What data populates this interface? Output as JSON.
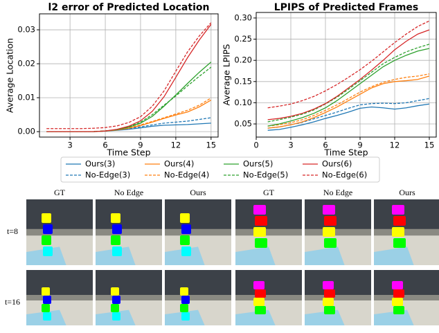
{
  "chart_data": [
    {
      "type": "line",
      "title": "l2 error of Predicted Location",
      "xlabel": "Time Step",
      "ylabel": "Average Location",
      "x": [
        1,
        2,
        3,
        4,
        5,
        6,
        7,
        8,
        9,
        10,
        11,
        12,
        13,
        14,
        15
      ],
      "xlim": [
        0.4,
        15.6
      ],
      "xticks": [
        3,
        6,
        9,
        12,
        15
      ],
      "ylim": [
        -0.0016,
        0.0347
      ],
      "yticks": [
        {
          "value": 0,
          "label": "0.00"
        },
        0.01,
        0.02,
        0.03
      ],
      "grid": true,
      "series": [
        {
          "name": "Ours(3)",
          "color": "#1f77b4",
          "linestyle": "solid",
          "values": [
            0,
            0,
            0,
            0,
            0,
            0.0002,
            0.0004,
            0.0007,
            0.0011,
            0.0016,
            0.0019,
            0.002,
            0.0021,
            0.0023,
            0.0025
          ]
        },
        {
          "name": "No-Edge(3)",
          "color": "#1f77b4",
          "linestyle": "dashed",
          "values": [
            0,
            0,
            0,
            0,
            0,
            0.0002,
            0.0005,
            0.0009,
            0.0014,
            0.002,
            0.0025,
            0.0028,
            0.0031,
            0.0036,
            0.0041
          ]
        },
        {
          "name": "Ours(4)",
          "color": "#ff7f0e",
          "linestyle": "solid",
          "values": [
            0,
            0,
            0,
            0,
            0,
            0.0002,
            0.0005,
            0.001,
            0.0018,
            0.0028,
            0.0039,
            0.0049,
            0.0058,
            0.0073,
            0.0093
          ]
        },
        {
          "name": "No-Edge(4)",
          "color": "#ff7f0e",
          "linestyle": "dashed",
          "values": [
            0,
            0,
            0,
            0,
            0,
            0.0002,
            0.0005,
            0.0011,
            0.002,
            0.003,
            0.0041,
            0.0052,
            0.0063,
            0.0078,
            0.0099
          ]
        },
        {
          "name": "Ours(5)",
          "color": "#2ca02c",
          "linestyle": "solid",
          "values": [
            0,
            0,
            0,
            0,
            0,
            0.0002,
            0.0006,
            0.0013,
            0.0025,
            0.0045,
            0.0075,
            0.0108,
            0.0142,
            0.0175,
            0.0205
          ]
        },
        {
          "name": "No-Edge(5)",
          "color": "#2ca02c",
          "linestyle": "dashed",
          "values": [
            0,
            0,
            0,
            0,
            0,
            0.0002,
            0.0006,
            0.0014,
            0.0028,
            0.005,
            0.0078,
            0.0105,
            0.0135,
            0.0163,
            0.019
          ]
        },
        {
          "name": "Ours(6)",
          "color": "#d62728",
          "linestyle": "solid",
          "values": [
            0,
            0,
            0,
            0,
            0,
            0.0002,
            0.0007,
            0.0016,
            0.0032,
            0.006,
            0.0103,
            0.016,
            0.0218,
            0.027,
            0.0316
          ]
        },
        {
          "name": "No-Edge(6)",
          "color": "#d62728",
          "linestyle": "dashed",
          "values": [
            0.0009,
            0.0009,
            0.0009,
            0.0009,
            0.001,
            0.0012,
            0.0017,
            0.0027,
            0.0044,
            0.0075,
            0.012,
            0.0178,
            0.0235,
            0.0282,
            0.0321
          ]
        }
      ]
    },
    {
      "type": "line",
      "title": "LPIPS of Predicted Frames",
      "xlabel": "Time Step",
      "ylabel": "Average LPIPS",
      "x": [
        1,
        2,
        3,
        4,
        5,
        6,
        7,
        8,
        9,
        10,
        11,
        12,
        13,
        14,
        15
      ],
      "xlim": [
        0,
        15.6
      ],
      "xticks": [
        0,
        3,
        6,
        9,
        12,
        15
      ],
      "ylim": [
        0.019,
        0.313
      ],
      "yticks": [
        0.05,
        {
          "value": 0.1,
          "label": "0.10"
        },
        0.15,
        {
          "value": 0.2,
          "label": "0.20"
        },
        0.25,
        {
          "value": 0.3,
          "label": "0.30"
        }
      ],
      "grid": true,
      "series": [
        {
          "color": "#1f77b4",
          "linestyle": "solid",
          "values": [
            0.035,
            0.037,
            0.042,
            0.048,
            0.055,
            0.063,
            0.07,
            0.078,
            0.087,
            0.09,
            0.088,
            0.085,
            0.088,
            0.093,
            0.097
          ]
        },
        {
          "color": "#1f77b4",
          "linestyle": "dashed",
          "values": [
            0.04,
            0.043,
            0.048,
            0.054,
            0.062,
            0.07,
            0.078,
            0.087,
            0.095,
            0.098,
            0.099,
            0.098,
            0.1,
            0.105,
            0.11
          ]
        },
        {
          "color": "#ff7f0e",
          "linestyle": "solid",
          "values": [
            0.04,
            0.043,
            0.048,
            0.055,
            0.065,
            0.077,
            0.09,
            0.105,
            0.12,
            0.135,
            0.145,
            0.15,
            0.152,
            0.155,
            0.163
          ]
        },
        {
          "color": "#ff7f0e",
          "linestyle": "dashed",
          "values": [
            0.045,
            0.048,
            0.053,
            0.06,
            0.07,
            0.082,
            0.095,
            0.11,
            0.125,
            0.138,
            0.148,
            0.155,
            0.16,
            0.163,
            0.168
          ]
        },
        {
          "color": "#2ca02c",
          "linestyle": "solid",
          "values": [
            0.045,
            0.05,
            0.057,
            0.065,
            0.075,
            0.088,
            0.105,
            0.125,
            0.145,
            0.165,
            0.185,
            0.2,
            0.212,
            0.222,
            0.228
          ]
        },
        {
          "color": "#2ca02c",
          "linestyle": "dashed",
          "values": [
            0.055,
            0.06,
            0.066,
            0.073,
            0.083,
            0.097,
            0.113,
            0.132,
            0.152,
            0.172,
            0.192,
            0.207,
            0.22,
            0.23,
            0.238
          ]
        },
        {
          "color": "#d62728",
          "linestyle": "solid",
          "values": [
            0.06,
            0.063,
            0.068,
            0.075,
            0.085,
            0.098,
            0.115,
            0.135,
            0.155,
            0.177,
            0.2,
            0.225,
            0.245,
            0.262,
            0.272
          ]
        },
        {
          "color": "#d62728",
          "linestyle": "dashed",
          "values": [
            0.088,
            0.092,
            0.097,
            0.105,
            0.115,
            0.128,
            0.143,
            0.16,
            0.178,
            0.198,
            0.22,
            0.242,
            0.262,
            0.28,
            0.293
          ]
        }
      ]
    }
  ],
  "image_grid": {
    "column_labels": [
      "GT",
      "No Edge",
      "Ours",
      "GT",
      "No Edge",
      "Ours"
    ],
    "row_labels": [
      "t=8",
      "t=16"
    ]
  }
}
